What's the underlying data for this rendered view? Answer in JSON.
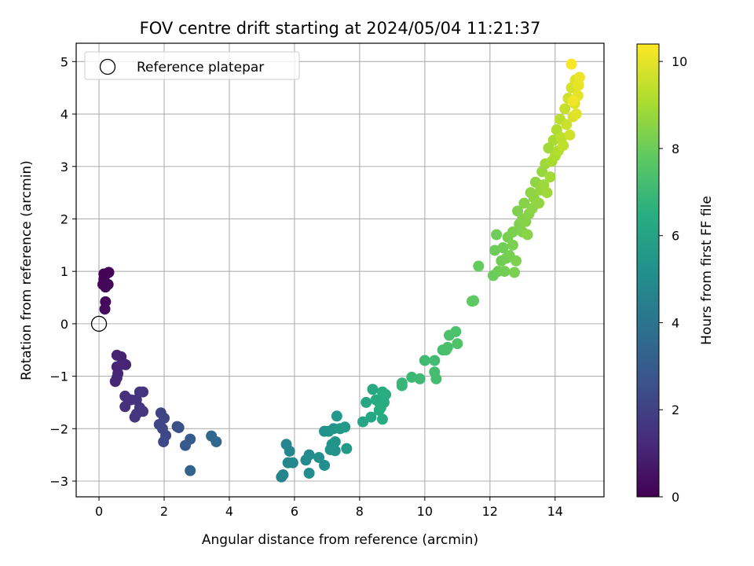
{
  "chart_data": {
    "type": "scatter",
    "title": "FOV centre drift starting at 2024/05/04 11:21:37",
    "xlabel": "Angular distance from reference (arcmin)",
    "ylabel": "Rotation from reference (arcmin)",
    "xlim": [
      -0.7,
      15.5
    ],
    "ylim": [
      -3.3,
      5.35
    ],
    "xticks": [
      0,
      2,
      4,
      6,
      8,
      10,
      12,
      14
    ],
    "yticks": [
      -3,
      -2,
      -1,
      0,
      1,
      2,
      3,
      4,
      5
    ],
    "grid": true,
    "legend": {
      "position": "top-left",
      "entries": [
        "Reference platepar"
      ]
    },
    "reference_point": {
      "x": 0,
      "y": 0,
      "label": "Reference platepar"
    },
    "colorbar": {
      "label": "Hours from first FF file",
      "colormap": "viridis",
      "range": [
        0,
        10.4
      ],
      "ticks": [
        0,
        2,
        4,
        6,
        8,
        10
      ]
    },
    "points": [
      {
        "x": 0.15,
        "y": 0.85,
        "c": 0.05
      },
      {
        "x": 0.22,
        "y": 0.95,
        "c": 0.1
      },
      {
        "x": 0.3,
        "y": 0.98,
        "c": 0.1
      },
      {
        "x": 0.12,
        "y": 0.75,
        "c": 0.15
      },
      {
        "x": 0.2,
        "y": 0.7,
        "c": 0.2
      },
      {
        "x": 0.28,
        "y": 0.75,
        "c": 0.2
      },
      {
        "x": 0.2,
        "y": 0.42,
        "c": 0.25
      },
      {
        "x": 0.18,
        "y": 0.28,
        "c": 0.3
      },
      {
        "x": 0.15,
        "y": 0.95,
        "c": 0.05
      },
      {
        "x": 0.55,
        "y": -0.6,
        "c": 1.0
      },
      {
        "x": 0.68,
        "y": -0.63,
        "c": 1.0
      },
      {
        "x": 0.55,
        "y": -0.82,
        "c": 1.05
      },
      {
        "x": 0.82,
        "y": -0.78,
        "c": 1.05
      },
      {
        "x": 0.68,
        "y": -0.78,
        "c": 1.1
      },
      {
        "x": 0.58,
        "y": -0.95,
        "c": 1.1
      },
      {
        "x": 0.5,
        "y": -1.1,
        "c": 1.1
      },
      {
        "x": 0.55,
        "y": -1.03,
        "c": 1.15
      },
      {
        "x": 0.8,
        "y": -1.38,
        "c": 1.4
      },
      {
        "x": 0.98,
        "y": -1.45,
        "c": 1.45
      },
      {
        "x": 0.8,
        "y": -1.58,
        "c": 1.45
      },
      {
        "x": 1.15,
        "y": -1.45,
        "c": 1.5
      },
      {
        "x": 1.25,
        "y": -1.3,
        "c": 1.5
      },
      {
        "x": 1.35,
        "y": -1.3,
        "c": 1.55
      },
      {
        "x": 1.25,
        "y": -1.6,
        "c": 1.55
      },
      {
        "x": 1.35,
        "y": -1.67,
        "c": 1.6
      },
      {
        "x": 1.15,
        "y": -1.72,
        "c": 1.6
      },
      {
        "x": 1.1,
        "y": -1.78,
        "c": 1.65
      },
      {
        "x": 1.9,
        "y": -1.7,
        "c": 2.1
      },
      {
        "x": 1.85,
        "y": -1.92,
        "c": 2.15
      },
      {
        "x": 1.95,
        "y": -2.0,
        "c": 2.2
      },
      {
        "x": 2.0,
        "y": -1.8,
        "c": 2.2
      },
      {
        "x": 2.05,
        "y": -2.13,
        "c": 2.25
      },
      {
        "x": 1.98,
        "y": -2.25,
        "c": 2.3
      },
      {
        "x": 2.4,
        "y": -1.96,
        "c": 2.5
      },
      {
        "x": 2.45,
        "y": -1.98,
        "c": 2.55
      },
      {
        "x": 2.65,
        "y": -2.32,
        "c": 2.9
      },
      {
        "x": 2.8,
        "y": -2.2,
        "c": 2.95
      },
      {
        "x": 2.8,
        "y": -2.8,
        "c": 3.3
      },
      {
        "x": 3.45,
        "y": -2.14,
        "c": 3.5
      },
      {
        "x": 3.6,
        "y": -2.25,
        "c": 3.55
      },
      {
        "x": 5.6,
        "y": -2.92,
        "c": 4.6
      },
      {
        "x": 5.65,
        "y": -2.88,
        "c": 4.65
      },
      {
        "x": 5.75,
        "y": -2.3,
        "c": 4.7
      },
      {
        "x": 5.85,
        "y": -2.43,
        "c": 4.75
      },
      {
        "x": 5.8,
        "y": -2.65,
        "c": 4.8
      },
      {
        "x": 5.95,
        "y": -2.65,
        "c": 4.85
      },
      {
        "x": 6.35,
        "y": -2.6,
        "c": 4.95
      },
      {
        "x": 6.45,
        "y": -2.5,
        "c": 5.0
      },
      {
        "x": 6.45,
        "y": -2.85,
        "c": 5.0
      },
      {
        "x": 6.75,
        "y": -2.55,
        "c": 5.1
      },
      {
        "x": 6.92,
        "y": -2.7,
        "c": 5.15
      },
      {
        "x": 6.92,
        "y": -2.05,
        "c": 5.2
      },
      {
        "x": 7.05,
        "y": -2.05,
        "c": 5.25
      },
      {
        "x": 7.1,
        "y": -2.4,
        "c": 5.3
      },
      {
        "x": 7.15,
        "y": -2.3,
        "c": 5.3
      },
      {
        "x": 7.2,
        "y": -2.0,
        "c": 5.35
      },
      {
        "x": 7.25,
        "y": -2.42,
        "c": 5.35
      },
      {
        "x": 7.25,
        "y": -2.25,
        "c": 5.4
      },
      {
        "x": 7.3,
        "y": -1.76,
        "c": 5.45
      },
      {
        "x": 7.4,
        "y": -2.0,
        "c": 5.5
      },
      {
        "x": 7.55,
        "y": -1.97,
        "c": 5.55
      },
      {
        "x": 7.6,
        "y": -2.38,
        "c": 5.6
      },
      {
        "x": 8.1,
        "y": -1.87,
        "c": 6.1
      },
      {
        "x": 8.2,
        "y": -1.5,
        "c": 6.15
      },
      {
        "x": 8.35,
        "y": -1.78,
        "c": 6.2
      },
      {
        "x": 8.4,
        "y": -1.25,
        "c": 6.25
      },
      {
        "x": 8.5,
        "y": -1.45,
        "c": 6.3
      },
      {
        "x": 8.6,
        "y": -1.5,
        "c": 6.3
      },
      {
        "x": 8.6,
        "y": -1.65,
        "c": 6.35
      },
      {
        "x": 8.7,
        "y": -1.82,
        "c": 6.35
      },
      {
        "x": 8.7,
        "y": -1.3,
        "c": 6.4
      },
      {
        "x": 8.75,
        "y": -1.5,
        "c": 6.4
      },
      {
        "x": 8.8,
        "y": -1.35,
        "c": 6.45
      },
      {
        "x": 8.65,
        "y": -1.6,
        "c": 6.45
      },
      {
        "x": 9.3,
        "y": -1.13,
        "c": 6.9
      },
      {
        "x": 9.3,
        "y": -1.18,
        "c": 6.9
      },
      {
        "x": 9.6,
        "y": -1.02,
        "c": 7.0
      },
      {
        "x": 9.85,
        "y": -1.05,
        "c": 7.05
      },
      {
        "x": 10.0,
        "y": -0.7,
        "c": 7.1
      },
      {
        "x": 10.3,
        "y": -0.7,
        "c": 7.15
      },
      {
        "x": 10.3,
        "y": -0.92,
        "c": 7.2
      },
      {
        "x": 10.35,
        "y": -1.05,
        "c": 7.2
      },
      {
        "x": 10.55,
        "y": -0.5,
        "c": 7.25
      },
      {
        "x": 10.65,
        "y": -0.5,
        "c": 7.3
      },
      {
        "x": 10.7,
        "y": -0.45,
        "c": 7.3
      },
      {
        "x": 10.75,
        "y": -0.22,
        "c": 7.35
      },
      {
        "x": 10.95,
        "y": -0.15,
        "c": 7.4
      },
      {
        "x": 11.0,
        "y": -0.38,
        "c": 7.45
      },
      {
        "x": 11.45,
        "y": 0.43,
        "c": 7.8
      },
      {
        "x": 11.5,
        "y": 0.44,
        "c": 7.8
      },
      {
        "x": 11.65,
        "y": 1.1,
        "c": 7.9
      },
      {
        "x": 12.1,
        "y": 0.92,
        "c": 8.0
      },
      {
        "x": 12.15,
        "y": 1.4,
        "c": 8.0
      },
      {
        "x": 12.2,
        "y": 1.7,
        "c": 8.05
      },
      {
        "x": 12.25,
        "y": 1.0,
        "c": 8.05
      },
      {
        "x": 12.35,
        "y": 1.2,
        "c": 8.1
      },
      {
        "x": 12.4,
        "y": 1.45,
        "c": 8.1
      },
      {
        "x": 12.45,
        "y": 1.0,
        "c": 8.15
      },
      {
        "x": 12.5,
        "y": 1.25,
        "c": 8.15
      },
      {
        "x": 12.55,
        "y": 1.65,
        "c": 8.2
      },
      {
        "x": 12.6,
        "y": 1.3,
        "c": 8.2
      },
      {
        "x": 12.7,
        "y": 1.5,
        "c": 8.25
      },
      {
        "x": 12.75,
        "y": 0.98,
        "c": 8.25
      },
      {
        "x": 12.7,
        "y": 1.75,
        "c": 8.3
      },
      {
        "x": 12.8,
        "y": 1.2,
        "c": 8.3
      },
      {
        "x": 12.85,
        "y": 2.15,
        "c": 8.35
      },
      {
        "x": 12.9,
        "y": 1.9,
        "c": 8.35
      },
      {
        "x": 13.0,
        "y": 2.0,
        "c": 8.4
      },
      {
        "x": 13.0,
        "y": 1.75,
        "c": 8.4
      },
      {
        "x": 13.05,
        "y": 2.3,
        "c": 8.45
      },
      {
        "x": 13.1,
        "y": 1.95,
        "c": 8.45
      },
      {
        "x": 13.15,
        "y": 1.7,
        "c": 8.5
      },
      {
        "x": 13.2,
        "y": 2.1,
        "c": 8.5
      },
      {
        "x": 13.25,
        "y": 2.5,
        "c": 8.55
      },
      {
        "x": 13.3,
        "y": 2.2,
        "c": 8.55
      },
      {
        "x": 13.35,
        "y": 2.4,
        "c": 8.6
      },
      {
        "x": 13.4,
        "y": 2.7,
        "c": 8.6
      },
      {
        "x": 13.5,
        "y": 2.3,
        "c": 8.65
      },
      {
        "x": 13.55,
        "y": 2.55,
        "c": 8.7
      },
      {
        "x": 13.6,
        "y": 2.9,
        "c": 8.75
      },
      {
        "x": 13.65,
        "y": 2.65,
        "c": 8.8
      },
      {
        "x": 13.7,
        "y": 3.05,
        "c": 8.85
      },
      {
        "x": 13.75,
        "y": 2.5,
        "c": 8.85
      },
      {
        "x": 13.8,
        "y": 3.35,
        "c": 8.9
      },
      {
        "x": 13.85,
        "y": 2.8,
        "c": 8.95
      },
      {
        "x": 13.9,
        "y": 3.1,
        "c": 9.0
      },
      {
        "x": 13.95,
        "y": 3.5,
        "c": 9.05
      },
      {
        "x": 14.0,
        "y": 3.2,
        "c": 9.1
      },
      {
        "x": 14.05,
        "y": 3.7,
        "c": 9.15
      },
      {
        "x": 14.1,
        "y": 3.3,
        "c": 9.2
      },
      {
        "x": 14.15,
        "y": 3.9,
        "c": 9.3
      },
      {
        "x": 14.2,
        "y": 3.55,
        "c": 9.35
      },
      {
        "x": 14.25,
        "y": 3.4,
        "c": 9.4
      },
      {
        "x": 14.3,
        "y": 4.1,
        "c": 9.5
      },
      {
        "x": 14.35,
        "y": 3.8,
        "c": 9.55
      },
      {
        "x": 14.4,
        "y": 4.3,
        "c": 9.6
      },
      {
        "x": 14.45,
        "y": 3.6,
        "c": 9.65
      },
      {
        "x": 14.5,
        "y": 4.5,
        "c": 9.75
      },
      {
        "x": 14.55,
        "y": 3.95,
        "c": 9.8
      },
      {
        "x": 14.6,
        "y": 4.2,
        "c": 9.85
      },
      {
        "x": 14.62,
        "y": 4.65,
        "c": 9.9
      },
      {
        "x": 14.65,
        "y": 4.0,
        "c": 9.95
      },
      {
        "x": 14.7,
        "y": 4.35,
        "c": 10.0
      },
      {
        "x": 14.72,
        "y": 4.55,
        "c": 10.05
      },
      {
        "x": 14.75,
        "y": 4.7,
        "c": 10.1
      },
      {
        "x": 14.5,
        "y": 4.95,
        "c": 10.3
      },
      {
        "x": 14.55,
        "y": 4.25,
        "c": 10.2
      }
    ]
  }
}
